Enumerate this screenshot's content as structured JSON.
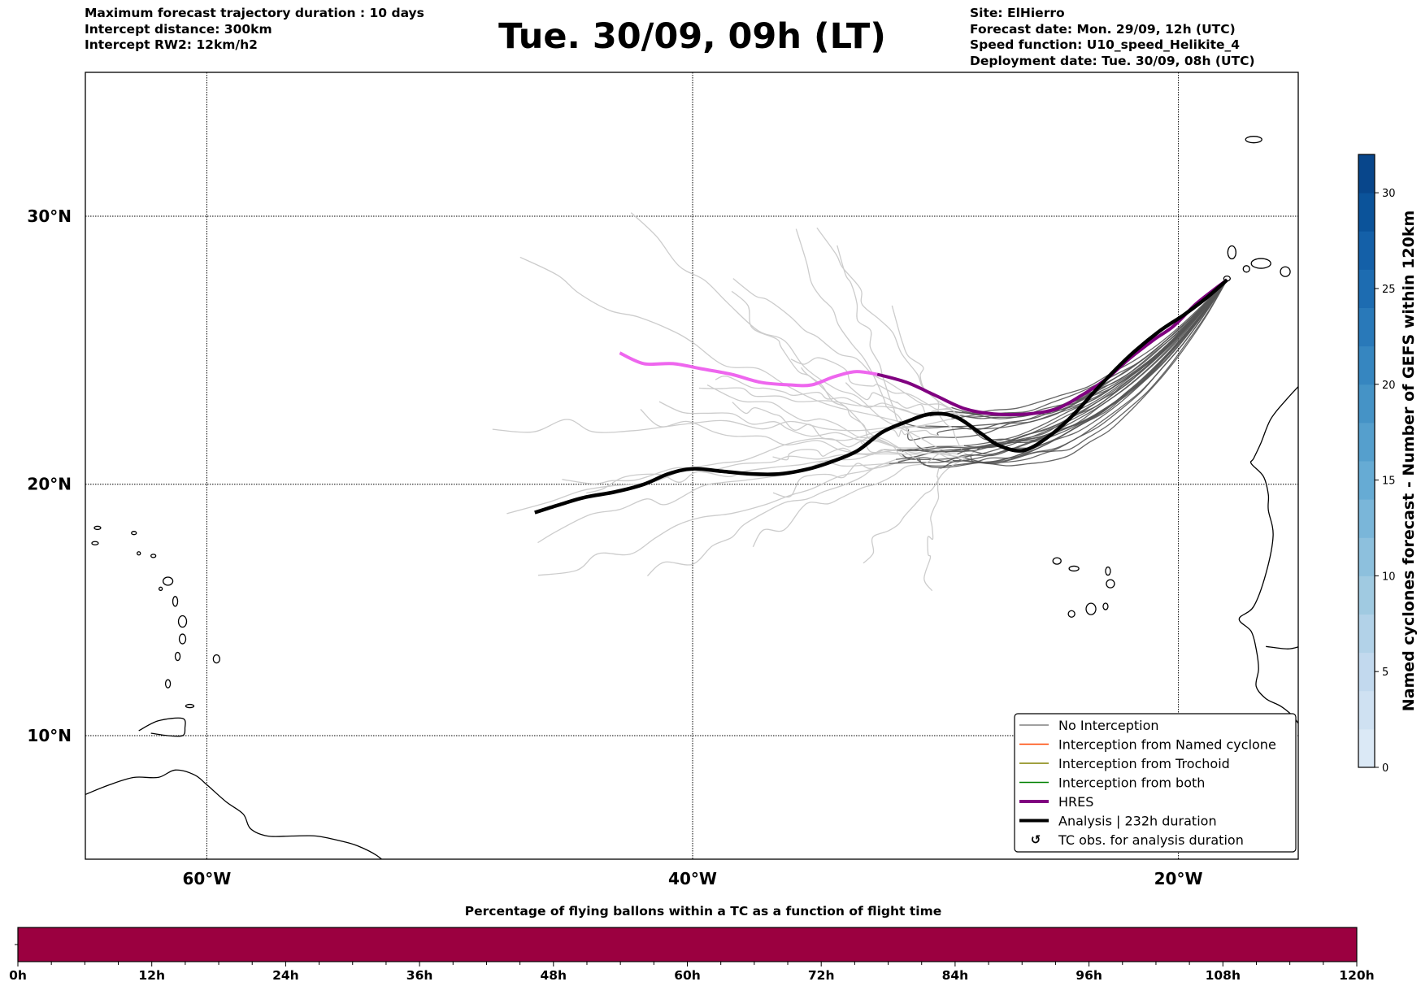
{
  "header": {
    "left_lines": [
      "Maximum forecast trajectory duration : 10 days",
      "Intercept distance: 300km",
      "Intercept RW2: 12km/h2"
    ],
    "title": "Tue. 30/09, 09h (LT)",
    "right_lines": [
      "Site: ElHierro",
      "Forecast date: Mon. 29/09, 12h (UTC)",
      "Speed function: U10_speed_Helikite_4",
      "Deployment date: Tue. 30/09, 08h (UTC)"
    ]
  },
  "chart_data": [
    {
      "type": "line",
      "title": "Tue. 30/09, 09h (LT)",
      "xlabel": "",
      "ylabel": "",
      "xlim": [
        -65,
        -15
      ],
      "ylim": [
        5,
        35
      ],
      "grid": true,
      "x_ticks": [
        -60,
        -40,
        -20
      ],
      "x_tick_labels": [
        "60°W",
        "40°W",
        "20°W"
      ],
      "y_ticks": [
        10,
        20,
        30
      ],
      "y_tick_labels": [
        "10°N",
        "20°N",
        "30°N"
      ],
      "legend_position": "lower-right",
      "legend": [
        {
          "label": "No Interception",
          "color": "#808080",
          "style": "thin"
        },
        {
          "label": "Interception from Named cyclone",
          "color": "#ff4500",
          "style": "thin"
        },
        {
          "label": "Interception from Trochoid",
          "color": "#808000",
          "style": "thin"
        },
        {
          "label": "Interception from both",
          "color": "#008000",
          "style": "thin"
        },
        {
          "label": "HRES",
          "color": "#800080",
          "style": "thick"
        },
        {
          "label": "Analysis | 232h duration",
          "color": "#000000",
          "style": "thick"
        },
        {
          "label": "TC obs. for analysis duration",
          "color": "#000000",
          "style": "marker",
          "marker": "↺"
        }
      ],
      "colors": {
        "ensemble_early": "#555555",
        "ensemble_late": "#cccccc",
        "hres_early": "#800080",
        "hres_late": "#ee66ee",
        "analysis": "#000000"
      },
      "launch_site": {
        "name": "ElHierro",
        "lon": -18.0,
        "lat": 27.7
      },
      "series": [
        {
          "name": "HRES",
          "lon": [
            -18.0,
            -18.6,
            -19.3,
            -20.2,
            -21.0,
            -22.0,
            -23.0,
            -24.0,
            -25.0,
            -26.2,
            -27.6,
            -28.8,
            -30.0,
            -31.2,
            -32.4
          ],
          "lat": [
            27.7,
            27.3,
            26.8,
            26.0,
            25.5,
            24.8,
            24.0,
            23.4,
            22.9,
            22.7,
            22.7,
            22.9,
            23.4,
            23.9,
            24.2
          ]
        },
        {
          "name": "HRES (late)",
          "lon": [
            -32.4,
            -33.3,
            -34.2,
            -35.1,
            -36.0,
            -37.2,
            -38.4,
            -39.6,
            -40.8,
            -42.0,
            -43.0
          ],
          "lat": [
            24.2,
            24.3,
            24.1,
            23.8,
            23.8,
            23.9,
            24.2,
            24.4,
            24.6,
            24.6,
            25.0
          ]
        },
        {
          "name": "Analysis | 232h duration",
          "lon": [
            -18.0,
            -18.9,
            -19.8,
            -20.8,
            -22.0,
            -23.2,
            -24.4,
            -25.4,
            -26.4,
            -27.4,
            -28.2,
            -29.2,
            -30.2,
            -31.2,
            -32.2,
            -33.2,
            -34.2,
            -35.2,
            -36.4,
            -37.6,
            -38.8,
            -40.0,
            -41.0,
            -42.0,
            -43.2,
            -44.4,
            -45.5,
            -46.5
          ],
          "lat": [
            27.7,
            27.0,
            26.4,
            25.8,
            24.9,
            23.8,
            22.6,
            21.8,
            21.3,
            21.5,
            22.0,
            22.6,
            22.7,
            22.4,
            22.0,
            21.3,
            20.9,
            20.6,
            20.4,
            20.4,
            20.5,
            20.6,
            20.4,
            20.0,
            19.7,
            19.5,
            19.2,
            18.9
          ]
        },
        {
          "name": "No Interception",
          "count": 30
        }
      ]
    },
    {
      "type": "heatmap",
      "title": "Named cyclones forecast - Number of GEFS within 120km",
      "orientation": "vertical",
      "range": [
        0,
        32
      ],
      "ticks": [
        0,
        5,
        10,
        15,
        20,
        25,
        30
      ],
      "levels": 16,
      "colormap": "Blues"
    },
    {
      "type": "heatmap",
      "title": "Percentage of flying ballons within a TC as a function of flight time",
      "xlim": [
        0,
        120
      ],
      "x_ticks": [
        0,
        12,
        24,
        36,
        48,
        60,
        72,
        84,
        96,
        108,
        120
      ],
      "x_tick_labels": [
        "0h",
        "12h",
        "24h",
        "36h",
        "48h",
        "60h",
        "72h",
        "84h",
        "96h",
        "108h",
        "120h"
      ],
      "values": [
        0
      ],
      "fill_color": "#9b0040"
    }
  ]
}
